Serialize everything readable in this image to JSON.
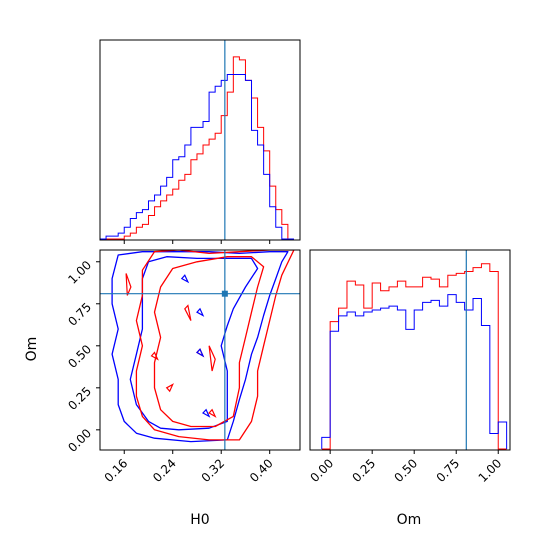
{
  "colors": {
    "red": "#ff0000",
    "blue": "#0000ff",
    "truth": "#1f77b4",
    "axis": "#000000"
  },
  "labels": {
    "h0": "H0",
    "om": "Om"
  },
  "truth": {
    "H0": 0.326,
    "Om": 0.81
  },
  "chart_data": [
    {
      "type": "histogram",
      "name": "H0 marginal",
      "xlim": [
        0.12,
        0.45
      ],
      "bins": [
        0.12,
        0.13,
        0.14,
        0.15,
        0.16,
        0.17,
        0.18,
        0.19,
        0.2,
        0.21,
        0.22,
        0.23,
        0.24,
        0.25,
        0.26,
        0.27,
        0.28,
        0.29,
        0.3,
        0.31,
        0.32,
        0.33,
        0.34,
        0.35,
        0.36,
        0.37,
        0.38,
        0.39,
        0.4,
        0.41,
        0.42,
        0.43,
        0.44
      ],
      "series": [
        {
          "color": "red",
          "values": [
            0,
            0,
            0,
            0,
            1,
            2,
            4,
            5,
            8,
            11,
            13,
            15,
            17,
            20,
            22,
            27,
            29,
            32,
            34,
            36,
            42,
            50,
            62,
            61,
            54,
            48,
            38,
            30,
            18,
            10,
            5,
            0
          ]
        },
        {
          "color": "blue",
          "values": [
            0,
            1,
            1,
            2,
            4,
            7,
            9,
            10,
            13,
            15,
            18,
            21,
            27,
            28,
            32,
            38,
            38,
            40,
            50,
            52,
            54,
            56,
            56,
            56,
            54,
            37,
            32,
            22,
            11,
            4,
            0,
            0
          ]
        }
      ],
      "truth": 0.326
    },
    {
      "type": "contour",
      "name": "H0 vs Om",
      "xlabel": "H0",
      "ylabel": "Om",
      "xlim": [
        0.12,
        0.45
      ],
      "ylim": [
        -0.12,
        1.07
      ],
      "xticks": [
        "0.16",
        "0.24",
        "0.32",
        "0.40"
      ],
      "yticks": [
        "0.00",
        "0.25",
        "0.50",
        "0.75",
        "1.00"
      ],
      "xtick_values": [
        0.16,
        0.24,
        0.32,
        0.4
      ],
      "ytick_values": [
        0.0,
        0.25,
        0.5,
        0.75,
        1.0
      ],
      "truth": {
        "x": 0.326,
        "y": 0.81
      },
      "contours": [
        {
          "color": "blue",
          "level": "outer",
          "points": [
            [
              0.21,
              -0.05
            ],
            [
              0.27,
              -0.07
            ],
            [
              0.33,
              -0.06
            ],
            [
              0.34,
              0.05
            ],
            [
              0.35,
              0.18
            ],
            [
              0.36,
              0.3
            ],
            [
              0.37,
              0.45
            ],
            [
              0.38,
              0.55
            ],
            [
              0.39,
              0.68
            ],
            [
              0.4,
              0.8
            ],
            [
              0.41,
              0.9
            ],
            [
              0.42,
              1.0
            ],
            [
              0.43,
              1.06
            ],
            [
              0.4,
              1.06
            ],
            [
              0.35,
              1.05
            ],
            [
              0.3,
              1.06
            ],
            [
              0.24,
              1.06
            ],
            [
              0.19,
              1.06
            ],
            [
              0.15,
              1.04
            ],
            [
              0.14,
              0.9
            ],
            [
              0.14,
              0.75
            ],
            [
              0.15,
              0.6
            ],
            [
              0.14,
              0.45
            ],
            [
              0.15,
              0.3
            ],
            [
              0.15,
              0.15
            ],
            [
              0.16,
              0.05
            ],
            [
              0.18,
              -0.02
            ]
          ]
        },
        {
          "color": "blue",
          "level": "inner",
          "points": [
            [
              0.25,
              0.0
            ],
            [
              0.3,
              0.01
            ],
            [
              0.33,
              0.05
            ],
            [
              0.33,
              0.2
            ],
            [
              0.33,
              0.35
            ],
            [
              0.32,
              0.5
            ],
            [
              0.33,
              0.62
            ],
            [
              0.34,
              0.72
            ],
            [
              0.36,
              0.85
            ],
            [
              0.38,
              0.96
            ],
            [
              0.37,
              1.02
            ],
            [
              0.33,
              1.02
            ],
            [
              0.28,
              1.02
            ],
            [
              0.23,
              1.03
            ],
            [
              0.2,
              1.0
            ],
            [
              0.19,
              0.9
            ],
            [
              0.19,
              0.75
            ],
            [
              0.19,
              0.6
            ],
            [
              0.18,
              0.45
            ],
            [
              0.17,
              0.3
            ],
            [
              0.18,
              0.15
            ],
            [
              0.2,
              0.05
            ],
            [
              0.22,
              0.01
            ]
          ]
        },
        {
          "color": "red",
          "level": "outer",
          "points": [
            [
              0.25,
              -0.04
            ],
            [
              0.3,
              -0.06
            ],
            [
              0.35,
              -0.06
            ],
            [
              0.37,
              0.05
            ],
            [
              0.38,
              0.2
            ],
            [
              0.38,
              0.35
            ],
            [
              0.39,
              0.5
            ],
            [
              0.4,
              0.65
            ],
            [
              0.41,
              0.8
            ],
            [
              0.42,
              0.92
            ],
            [
              0.44,
              1.07
            ],
            [
              0.4,
              1.07
            ],
            [
              0.35,
              1.06
            ],
            [
              0.3,
              1.05
            ],
            [
              0.25,
              1.07
            ],
            [
              0.21,
              1.06
            ],
            [
              0.19,
              0.95
            ],
            [
              0.19,
              0.8
            ],
            [
              0.18,
              0.65
            ],
            [
              0.19,
              0.5
            ],
            [
              0.18,
              0.35
            ],
            [
              0.18,
              0.2
            ],
            [
              0.19,
              0.08
            ],
            [
              0.21,
              0.0
            ]
          ]
        },
        {
          "color": "red",
          "level": "inner",
          "points": [
            [
              0.27,
              0.02
            ],
            [
              0.31,
              0.02
            ],
            [
              0.34,
              0.08
            ],
            [
              0.35,
              0.25
            ],
            [
              0.35,
              0.4
            ],
            [
              0.36,
              0.55
            ],
            [
              0.37,
              0.7
            ],
            [
              0.38,
              0.85
            ],
            [
              0.39,
              0.97
            ],
            [
              0.37,
              1.03
            ],
            [
              0.33,
              1.03
            ],
            [
              0.28,
              1.0
            ],
            [
              0.24,
              0.96
            ],
            [
              0.22,
              0.85
            ],
            [
              0.21,
              0.7
            ],
            [
              0.22,
              0.55
            ],
            [
              0.21,
              0.4
            ],
            [
              0.21,
              0.25
            ],
            [
              0.22,
              0.12
            ],
            [
              0.24,
              0.05
            ]
          ]
        }
      ],
      "islands": [
        {
          "color": "red",
          "points": [
            [
              0.163,
              0.93
            ],
            [
              0.171,
              0.85
            ],
            [
              0.165,
              0.8
            ]
          ]
        },
        {
          "color": "red",
          "points": [
            [
              0.26,
              0.72
            ],
            [
              0.27,
              0.65
            ],
            [
              0.265,
              0.74
            ]
          ]
        },
        {
          "color": "red",
          "points": [
            [
              0.3,
              0.5
            ],
            [
              0.31,
              0.42
            ],
            [
              0.305,
              0.35
            ]
          ]
        },
        {
          "color": "red",
          "points": [
            [
              0.205,
              0.44
            ],
            [
              0.215,
              0.42
            ],
            [
              0.21,
              0.46
            ]
          ]
        },
        {
          "color": "red",
          "points": [
            [
              0.28,
              0.46
            ],
            [
              0.29,
              0.44
            ],
            [
              0.285,
              0.48
            ]
          ]
        },
        {
          "color": "red",
          "points": [
            [
              0.23,
              0.25
            ],
            [
              0.24,
              0.27
            ],
            [
              0.235,
              0.23
            ]
          ]
        },
        {
          "color": "red",
          "points": [
            [
              0.3,
              0.1
            ],
            [
              0.31,
              0.08
            ],
            [
              0.305,
              0.12
            ]
          ]
        },
        {
          "color": "blue",
          "points": [
            [
              0.28,
              0.7
            ],
            [
              0.29,
              0.68
            ],
            [
              0.285,
              0.72
            ]
          ]
        },
        {
          "color": "blue",
          "points": [
            [
              0.28,
              0.46
            ],
            [
              0.29,
              0.44
            ],
            [
              0.285,
              0.48
            ]
          ]
        },
        {
          "color": "blue",
          "points": [
            [
              0.29,
              0.1
            ],
            [
              0.3,
              0.08
            ],
            [
              0.295,
              0.12
            ]
          ]
        },
        {
          "color": "blue",
          "points": [
            [
              0.255,
              0.9
            ],
            [
              0.265,
              0.88
            ],
            [
              0.26,
              0.92
            ]
          ]
        }
      ]
    },
    {
      "type": "histogram",
      "name": "Om marginal",
      "xlabel": "Om",
      "xlim": [
        -0.12,
        1.07
      ],
      "xticks": [
        "0.00",
        "0.25",
        "0.50",
        "0.75",
        "1.00"
      ],
      "xtick_values": [
        0.0,
        0.25,
        0.5,
        0.75,
        1.0
      ],
      "bins": [
        -0.05,
        0.0,
        0.05,
        0.1,
        0.15,
        0.2,
        0.25,
        0.3,
        0.35,
        0.4,
        0.45,
        0.5,
        0.55,
        0.6,
        0.65,
        0.7,
        0.75,
        0.8,
        0.85,
        0.9,
        0.95,
        1.0,
        1.05
      ],
      "series": [
        {
          "color": "red",
          "values": [
            0,
            66,
            73,
            87,
            85,
            73,
            86,
            82,
            84,
            87,
            84,
            84,
            89,
            88,
            84,
            90,
            91,
            92,
            94,
            96,
            92,
            0
          ]
        },
        {
          "color": "blue",
          "values": [
            6,
            61,
            69,
            71,
            69,
            71,
            72,
            73,
            74,
            72,
            62,
            72,
            76,
            77,
            74,
            80,
            76,
            72,
            78,
            64,
            8,
            14
          ]
        }
      ],
      "truth": 0.81
    }
  ]
}
